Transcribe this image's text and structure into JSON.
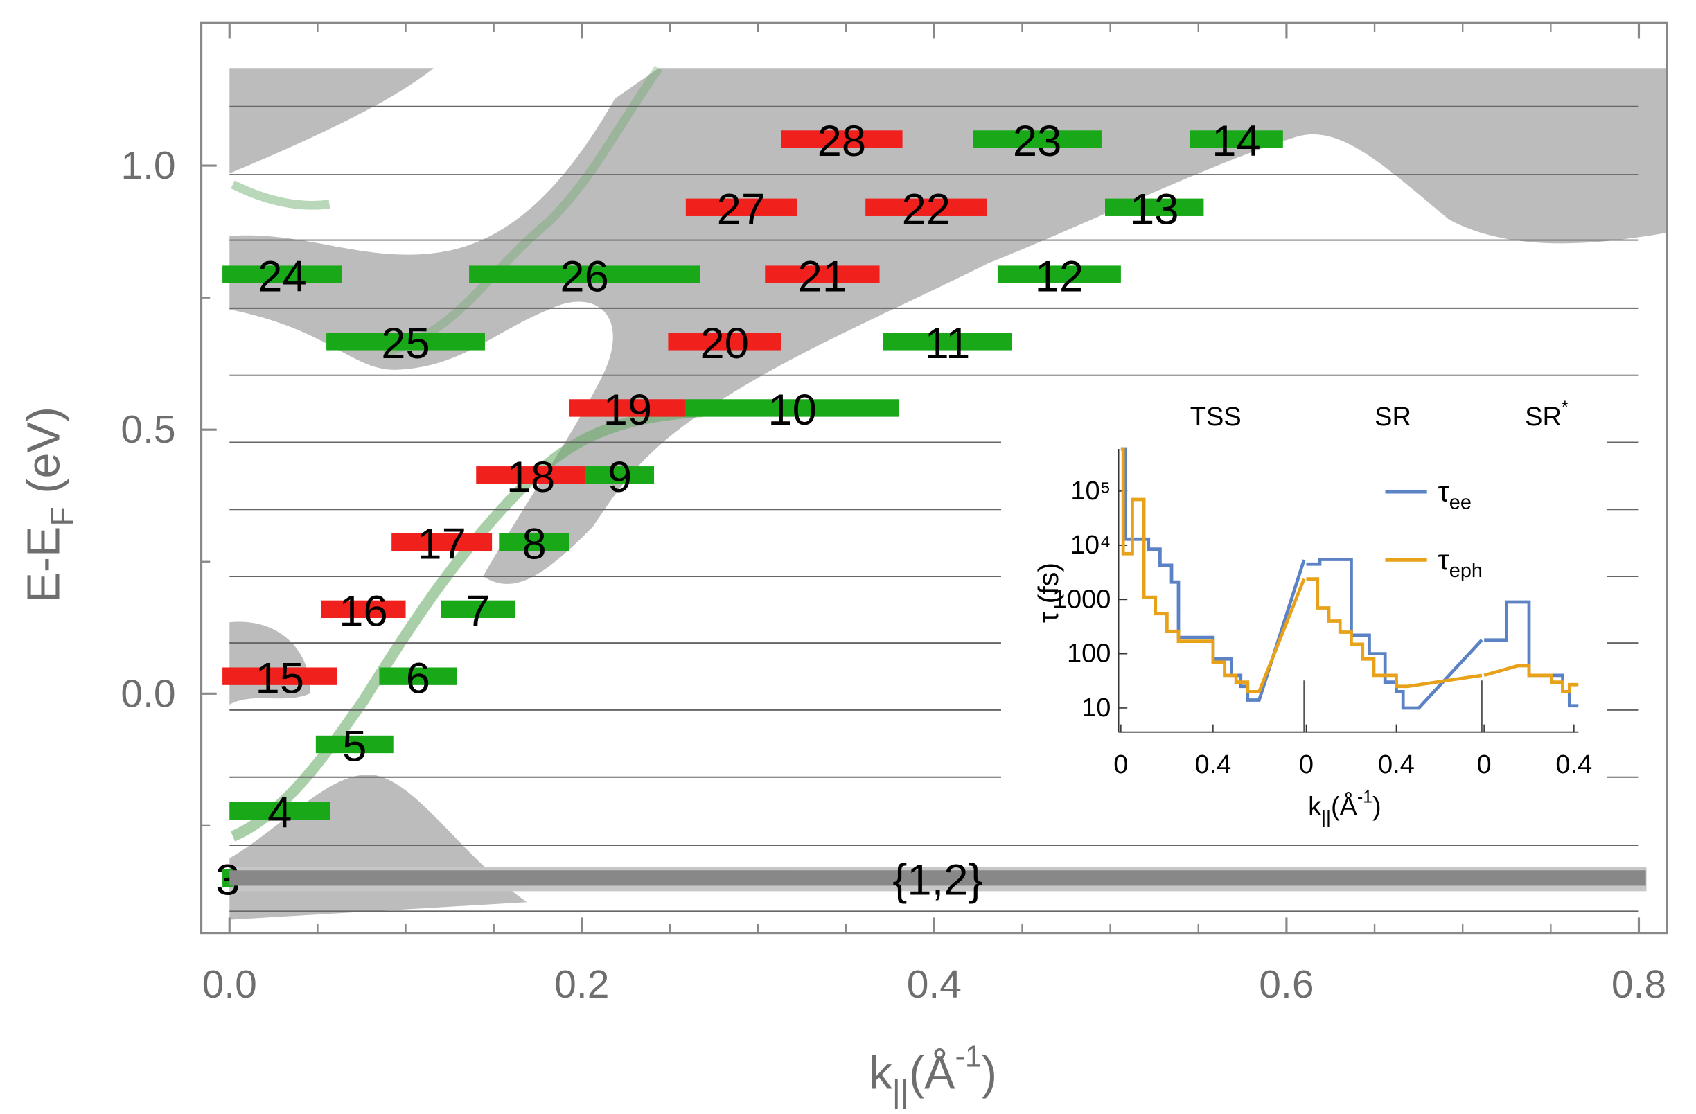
{
  "chart_data": [
    {
      "type": "levels",
      "xlabel": "k||(Å-1)",
      "ylabel": "E-EF (eV)",
      "xlim": [
        -0.016,
        0.816
      ],
      "ylim": [
        -0.453,
        1.27
      ],
      "xticks": [
        {
          "value": 0,
          "label": "0.0"
        },
        0.2,
        0.4,
        0.6,
        0.8
      ],
      "xticks_minor": [
        0.05,
        0.1,
        0.15,
        0.25,
        0.3,
        0.35,
        0.45,
        0.5,
        0.55,
        0.65,
        0.7,
        0.75
      ],
      "yticks": [
        {
          "value": 0,
          "label": "0.0"
        },
        0.5,
        {
          "value": 1,
          "label": "1.0"
        }
      ],
      "yticks_minor": [
        -0.25,
        0.25,
        0.75
      ],
      "hlines": [
        1.112,
        0.983,
        0.859,
        0.73,
        0.603,
        0.476,
        0.349,
        0.222,
        0.096,
        -0.031,
        -0.158,
        -0.287,
        -0.412
      ],
      "levels": [
        {
          "label": "24",
          "x": [
            -0.004,
            0.064
          ],
          "y": 0.794,
          "color": "#18a818"
        },
        {
          "label": "25",
          "x": [
            0.055,
            0.145
          ],
          "y": 0.667,
          "color": "#18a818"
        },
        {
          "label": "26",
          "x": [
            0.136,
            0.267
          ],
          "y": 0.794,
          "color": "#18a818"
        },
        {
          "label": "27",
          "x": [
            0.259,
            0.322
          ],
          "y": 0.921,
          "color": "#f0201c"
        },
        {
          "label": "28",
          "x": [
            0.313,
            0.382
          ],
          "y": 1.05,
          "color": "#f0201c"
        },
        {
          "label": "23",
          "x": [
            0.422,
            0.495
          ],
          "y": 1.05,
          "color": "#18a818"
        },
        {
          "label": "14",
          "x": [
            0.545,
            0.598
          ],
          "y": 1.05,
          "color": "#18a818"
        },
        {
          "label": "22",
          "x": [
            0.361,
            0.43
          ],
          "y": 0.921,
          "color": "#f0201c"
        },
        {
          "label": "13",
          "x": [
            0.497,
            0.553
          ],
          "y": 0.921,
          "color": "#18a818"
        },
        {
          "label": "21",
          "x": [
            0.304,
            0.369
          ],
          "y": 0.794,
          "color": "#f0201c"
        },
        {
          "label": "12",
          "x": [
            0.436,
            0.506
          ],
          "y": 0.794,
          "color": "#18a818"
        },
        {
          "label": "20",
          "x": [
            0.249,
            0.313
          ],
          "y": 0.667,
          "color": "#f0201c"
        },
        {
          "label": "11",
          "x": [
            0.371,
            0.444
          ],
          "y": 0.667,
          "color": "#18a818"
        },
        {
          "label": "19",
          "x": [
            0.193,
            0.259
          ],
          "y": 0.541,
          "color": "#f0201c"
        },
        {
          "label": "10",
          "x": [
            0.259,
            0.38
          ],
          "y": 0.541,
          "color": "#18a818"
        },
        {
          "label": "18",
          "x": [
            0.14,
            0.202
          ],
          "y": 0.414,
          "color": "#f0201c"
        },
        {
          "label": "9",
          "x": [
            0.202,
            0.241
          ],
          "y": 0.414,
          "color": "#18a818"
        },
        {
          "label": "17",
          "x": [
            0.092,
            0.149
          ],
          "y": 0.287,
          "color": "#f0201c"
        },
        {
          "label": "8",
          "x": [
            0.153,
            0.193
          ],
          "y": 0.287,
          "color": "#18a818"
        },
        {
          "label": "16",
          "x": [
            0.052,
            0.1
          ],
          "y": 0.16,
          "color": "#f0201c"
        },
        {
          "label": "7",
          "x": [
            0.12,
            0.162
          ],
          "y": 0.16,
          "color": "#18a818"
        },
        {
          "label": "15",
          "x": [
            -0.004,
            0.061
          ],
          "y": 0.033,
          "color": "#f0201c"
        },
        {
          "label": "6",
          "x": [
            0.085,
            0.129
          ],
          "y": 0.033,
          "color": "#18a818"
        },
        {
          "label": "5",
          "x": [
            0.049,
            0.093
          ],
          "y": -0.096,
          "color": "#18a818"
        },
        {
          "label": "4",
          "x": [
            0,
            0.057
          ],
          "y": -0.222,
          "color": "#18a818"
        },
        {
          "label": "3",
          "x": [
            -0.004,
            0.002
          ],
          "y": -0.349,
          "color": "#18a818"
        },
        {
          "label": "{1,2}",
          "x": [
            0,
            0.804
          ],
          "y": -0.349,
          "color": "#888888"
        }
      ]
    },
    {
      "type": "line",
      "log_y": true,
      "xlabel": "k||(Å-1)",
      "ylabel": "τ (fs)",
      "ylim": [
        3.6,
        600000
      ],
      "yticks": [
        10,
        100,
        1000,
        {
          "value": 10000,
          "label": "10⁴"
        },
        {
          "value": 100000,
          "label": "10⁵"
        }
      ],
      "legend": "upper right",
      "series": [
        {
          "name": "τee",
          "color": "#5b82c4"
        },
        {
          "name": "τeph",
          "color": "#e8a21a"
        }
      ],
      "panels": [
        {
          "title": "TSS",
          "xlim": [
            -0.01,
            0.795
          ],
          "xticks": [
            0,
            0.4
          ],
          "series": [
            {
              "x": [
                0,
                0.02,
                0.02,
                0.12,
                0.12,
                0.17,
                0.17,
                0.22,
                0.22,
                0.25,
                0.25,
                0.4,
                0.4,
                0.48,
                0.48,
                0.52,
                0.52,
                0.55,
                0.55,
                0.6,
                0.795
              ],
              "values": [
                600000,
                600000,
                13000,
                13000,
                8500,
                8500,
                4300,
                4300,
                2100,
                2100,
                200,
                200,
                80,
                80,
                40,
                40,
                25,
                25,
                14,
                14,
                5400
              ]
            },
            {
              "x": [
                0,
                0.01,
                0.01,
                0.05,
                0.05,
                0.1,
                0.1,
                0.15,
                0.15,
                0.2,
                0.2,
                0.25,
                0.25,
                0.4,
                0.4,
                0.45,
                0.45,
                0.5,
                0.5,
                0.55,
                0.55,
                0.6,
                0.795
              ],
              "values": [
                600000,
                600000,
                7000,
                7000,
                70000,
                70000,
                1100,
                1100,
                550,
                550,
                260,
                260,
                170,
                170,
                70,
                70,
                40,
                40,
                30,
                30,
                20,
                20,
                2400
              ]
            }
          ]
        },
        {
          "title": "SR",
          "xlim": [
            -0.01,
            0.78
          ],
          "xticks": [
            0,
            0.4
          ],
          "series": [
            {
              "x": [
                0,
                0.06,
                0.06,
                0.2,
                0.2,
                0.28,
                0.28,
                0.35,
                0.35,
                0.4,
                0.4,
                0.43,
                0.43,
                0.5,
                0.78
              ],
              "values": [
                4500,
                4500,
                5500,
                5500,
                220,
                220,
                100,
                100,
                30,
                30,
                20,
                20,
                10,
                10,
                180
              ]
            },
            {
              "x": [
                0,
                0.05,
                0.05,
                0.1,
                0.1,
                0.15,
                0.15,
                0.2,
                0.2,
                0.25,
                0.25,
                0.3,
                0.3,
                0.4,
                0.4,
                0.45,
                0.78
              ],
              "values": [
                2400,
                2400,
                700,
                700,
                400,
                400,
                250,
                250,
                150,
                150,
                80,
                80,
                40,
                40,
                25,
                25,
                40
              ]
            }
          ]
        },
        {
          "title": "SR*",
          "xlim": [
            -0.01,
            0.42
          ],
          "xticks": [
            0,
            0.4
          ],
          "series": [
            {
              "x": [
                0,
                0.1,
                0.1,
                0.2,
                0.2,
                0.35,
                0.35,
                0.38,
                0.38,
                0.42
              ],
              "values": [
                180,
                180,
                900,
                900,
                40,
                40,
                20,
                20,
                11,
                11
              ]
            },
            {
              "x": [
                0,
                0.15,
                0.2,
                0.2,
                0.3,
                0.3,
                0.35,
                0.35,
                0.38,
                0.38,
                0.42
              ],
              "values": [
                40,
                60,
                60,
                40,
                40,
                30,
                30,
                20,
                20,
                27,
                27
              ]
            }
          ]
        }
      ]
    }
  ]
}
